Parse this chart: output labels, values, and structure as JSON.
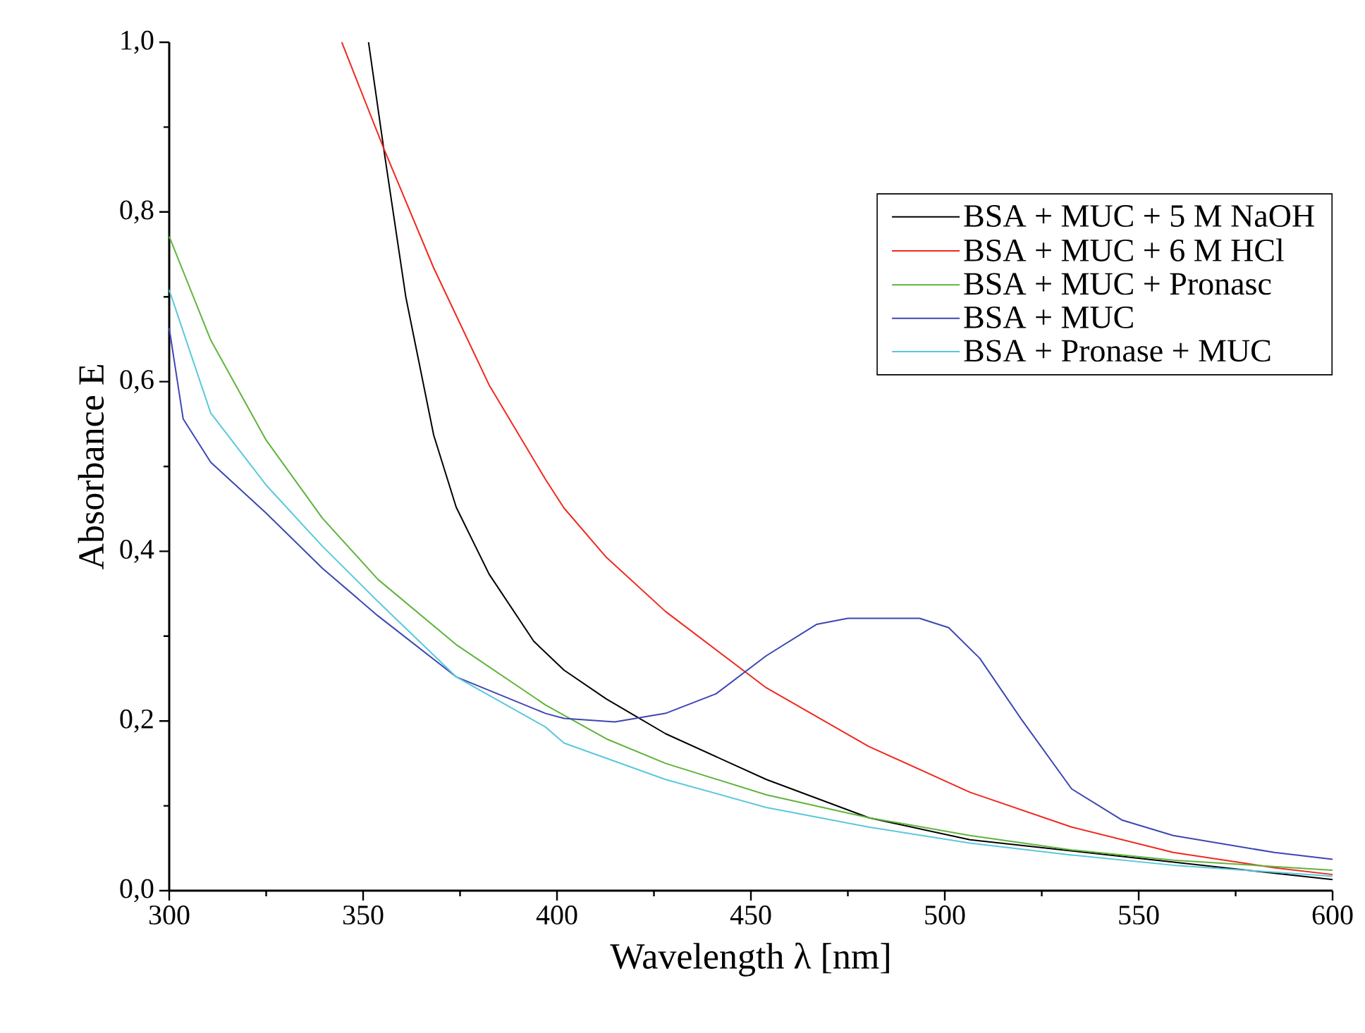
{
  "chart_data": {
    "type": "line",
    "xlabel": "Wavelength λ [nm]",
    "ylabel": "Absorbance E",
    "xlim": [
      300,
      600
    ],
    "ylim": [
      0,
      1
    ],
    "xticks": [
      300,
      350,
      400,
      450,
      500,
      550,
      600
    ],
    "yticks": [
      {
        "value": 0,
        "label": "0,0"
      },
      {
        "value": 0.2,
        "label": "0,2"
      },
      {
        "value": 0.4,
        "label": "0,4"
      },
      {
        "value": 0.6,
        "label": "0,6"
      },
      {
        "value": 0.8,
        "label": "0,8"
      },
      {
        "value": 1,
        "label": "1,0"
      }
    ],
    "grid": false,
    "legend": "top right",
    "line_style": "solid",
    "marker": "none",
    "series": [
      {
        "name": "BSA + MUC + 5 M NaOH",
        "color": "#000000",
        "x": [
          351.4,
          355.3,
          361.0,
          368.2,
          374.0,
          382.5,
          394.0,
          401.8,
          412.7,
          428.0,
          454.0,
          480.4,
          506.5,
          600.0
        ],
        "values": [
          1.0,
          0.875,
          0.7,
          0.537,
          0.452,
          0.373,
          0.294,
          0.26,
          0.226,
          0.185,
          0.131,
          0.086,
          0.06,
          0.013
        ]
      },
      {
        "name": "BSA + MUC + 6 M HCl",
        "color": "#f0281e",
        "x": [
          344.5,
          355.3,
          368.2,
          382.5,
          397.0,
          401.8,
          412.7,
          428.0,
          454.0,
          480.4,
          506.5,
          532.7,
          558.9,
          585.0,
          600.0
        ],
        "values": [
          1.0,
          0.875,
          0.734,
          0.596,
          0.485,
          0.451,
          0.393,
          0.329,
          0.239,
          0.17,
          0.116,
          0.075,
          0.045,
          0.027,
          0.019
        ]
      },
      {
        "name": "BSA + MUC + Pronasc",
        "color": "#5fb43c",
        "x": [
          300.0,
          310.7,
          325.0,
          339.5,
          353.8,
          374.0,
          397.0,
          412.7,
          428.0,
          454.0,
          480.4,
          506.5,
          532.7,
          558.9,
          600.0
        ],
        "values": [
          0.771,
          0.649,
          0.531,
          0.439,
          0.367,
          0.29,
          0.219,
          0.179,
          0.15,
          0.113,
          0.086,
          0.065,
          0.048,
          0.036,
          0.024
        ]
      },
      {
        "name": "BSA + MUC",
        "color": "#3c46b4",
        "x": [
          300.0,
          303.6,
          310.7,
          325.0,
          339.5,
          353.8,
          374.0,
          397.0,
          401.8,
          414.9,
          428.0,
          441.0,
          454.0,
          467.0,
          475.0,
          493.5,
          501.0,
          509.0,
          519.6,
          532.7,
          545.8,
          558.9,
          585.0,
          600.0
        ],
        "values": [
          0.663,
          0.556,
          0.505,
          0.445,
          0.38,
          0.324,
          0.252,
          0.209,
          0.203,
          0.199,
          0.209,
          0.232,
          0.277,
          0.314,
          0.321,
          0.321,
          0.31,
          0.274,
          0.203,
          0.12,
          0.083,
          0.065,
          0.045,
          0.037
        ]
      },
      {
        "name": "BSA + Pronase + MUC",
        "color": "#5ac8dc",
        "x": [
          300.0,
          310.7,
          325.0,
          339.5,
          353.8,
          374.0,
          397.0,
          401.8,
          428.0,
          454.0,
          480.4,
          506.5,
          532.7,
          558.9,
          600.0
        ],
        "values": [
          0.708,
          0.563,
          0.478,
          0.406,
          0.341,
          0.252,
          0.193,
          0.174,
          0.131,
          0.098,
          0.075,
          0.056,
          0.042,
          0.03,
          0.017
        ]
      }
    ]
  }
}
